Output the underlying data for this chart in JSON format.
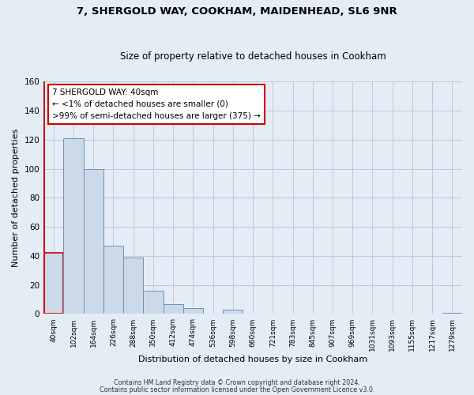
{
  "title": "7, SHERGOLD WAY, COOKHAM, MAIDENHEAD, SL6 9NR",
  "subtitle": "Size of property relative to detached houses in Cookham",
  "xlabel": "Distribution of detached houses by size in Cookham",
  "ylabel": "Number of detached properties",
  "bin_labels": [
    "40sqm",
    "102sqm",
    "164sqm",
    "226sqm",
    "288sqm",
    "350sqm",
    "412sqm",
    "474sqm",
    "536sqm",
    "598sqm",
    "660sqm",
    "721sqm",
    "783sqm",
    "845sqm",
    "907sqm",
    "969sqm",
    "1031sqm",
    "1093sqm",
    "1155sqm",
    "1217sqm",
    "1279sqm"
  ],
  "bar_values": [
    42,
    121,
    100,
    47,
    39,
    16,
    7,
    4,
    0,
    3,
    0,
    0,
    0,
    0,
    0,
    0,
    0,
    0,
    0,
    0,
    1
  ],
  "bar_color": "#ccd9e8",
  "bar_edge_color": "#7090b8",
  "highlight_bar_index": 0,
  "highlight_edge_color": "#cc0000",
  "ylim": [
    0,
    160
  ],
  "yticks": [
    0,
    20,
    40,
    60,
    80,
    100,
    120,
    140,
    160
  ],
  "grid_color": "#c0c8d8",
  "bg_color": "#e4ecf5",
  "annotation_box_edge": "#cc0000",
  "annotation_lines": [
    "7 SHERGOLD WAY: 40sqm",
    "← <1% of detached houses are smaller (0)",
    ">99% of semi-detached houses are larger (375) →"
  ],
  "footer_lines": [
    "Contains HM Land Registry data © Crown copyright and database right 2024.",
    "Contains public sector information licensed under the Open Government Licence v3.0."
  ],
  "vline_color": "#cc0000"
}
